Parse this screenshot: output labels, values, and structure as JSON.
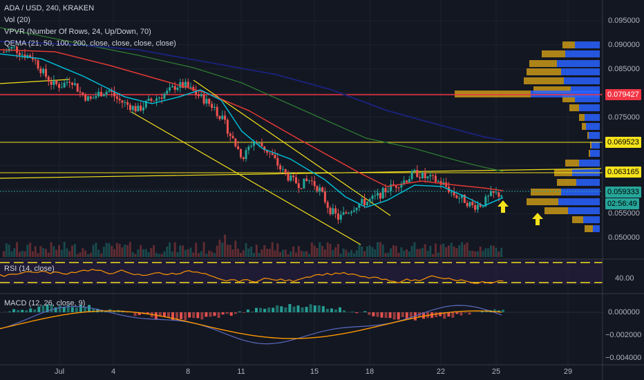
{
  "header": {
    "symbol_line": "ADA / USD, 240, KRAKEN",
    "indicators": [
      "Vol (20)",
      "VPVR (Number Of Rows, 24, Up/Down, 70)",
      "QEMA (21, 50, 100, 200, close, close, close, close)"
    ]
  },
  "price_axis": {
    "labels": [
      "0.095000",
      "0.090000",
      "0.085000",
      "0.075000",
      "0.055000",
      "0.050000"
    ]
  },
  "price_tags": [
    {
      "text": "0.079427",
      "bg": "#f23645",
      "fg": "#ffffff",
      "price": 0.079427
    },
    {
      "text": "0.069523",
      "bg": "#f5e21b",
      "fg": "#000000",
      "price": 0.069523
    },
    {
      "text": "0.063165",
      "bg": "#f5e21b",
      "fg": "#000000",
      "price": 0.063165
    },
    {
      "text": "0.059333",
      "bg": "#26a69a",
      "fg": "#000000",
      "price": 0.059333
    },
    {
      "text": "02:56:49",
      "bg": "#26a69a",
      "fg": "#000000"
    }
  ],
  "rsi": {
    "title": "RSI (14, close)",
    "level_label": "40.00"
  },
  "macd": {
    "title": "MACD (12, 26, close, 9)",
    "labels": [
      "0.000000",
      "−0.002000",
      "−0.004000"
    ]
  },
  "time_axis": [
    "Jul",
    "4",
    "8",
    "11",
    "15",
    "18",
    "22",
    "25",
    "29"
  ],
  "colors": {
    "background": "#131722",
    "up": "#26a69a",
    "down": "#ef5350",
    "ema21": "#00bcd4",
    "ema50": "#e53935",
    "ema100": "#2e7d32",
    "ema200": "#1a237e",
    "trendline": "#f5e21b",
    "vpvr_up": "#2962ff",
    "vpvr_down": "#d4a017"
  },
  "chart_data": {
    "type": "candlestick",
    "series_price_range": [
      0.046,
      0.097
    ],
    "annotations": [
      "up-arrow",
      "up-arrow"
    ]
  }
}
